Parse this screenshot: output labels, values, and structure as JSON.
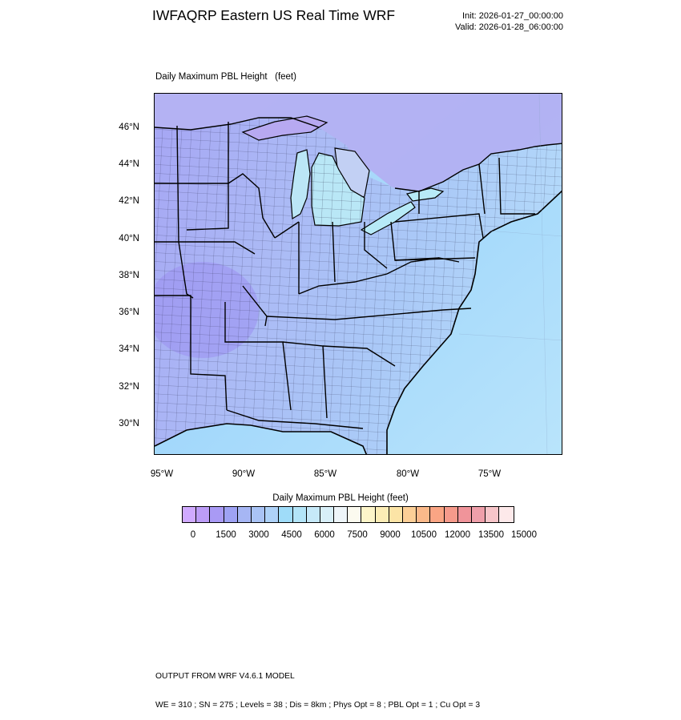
{
  "header": {
    "title": "IWFAQRP Eastern US Real Time WRF",
    "init": "Init: 2026-01-27_00:00:00",
    "valid": "Valid: 2026-01-28_06:00:00"
  },
  "map": {
    "field_title": "Daily Maximum PBL Height   (feet)",
    "lat_labels": [
      "46°N",
      "44°N",
      "42°N",
      "40°N",
      "38°N",
      "36°N",
      "34°N",
      "32°N",
      "30°N"
    ],
    "lon_labels": [
      "95°W",
      "90°W",
      "85°W",
      "80°W",
      "75°W"
    ],
    "colors": {
      "land_base": "#aec0f6",
      "ocean_base": "#a3d6fb",
      "lake": "#b7eaf7",
      "boundary": "#000000"
    }
  },
  "colorbar": {
    "title": "Daily Maximum PBL Height  (feet)",
    "labels": [
      "0",
      "1500",
      "3000",
      "4500",
      "6000",
      "7500",
      "9000",
      "10500",
      "12000",
      "13500",
      "15000"
    ],
    "colors": [
      "#d0aaff",
      "#bc9cf7",
      "#a99af5",
      "#9ea2f4",
      "#a6b6f4",
      "#a9c3f5",
      "#aed2f8",
      "#9fdcf9",
      "#b3e5f8",
      "#c6e9f8",
      "#d8eff8",
      "#eef5f9",
      "#fbfaef",
      "#fdf5c9",
      "#fcedb6",
      "#fce4a6",
      "#fccf97",
      "#fbb98a",
      "#faa584",
      "#f69a8b",
      "#f0949a",
      "#ef9faa",
      "#f7c5c9",
      "#fde9ea"
    ]
  },
  "footer": {
    "line1": "OUTPUT FROM WRF V4.6.1 MODEL",
    "line2": "WE = 310 ; SN = 275 ; Levels = 38 ; Dis = 8km ; Phys Opt = 8 ; PBL Opt = 1 ; Cu Opt = 3"
  }
}
